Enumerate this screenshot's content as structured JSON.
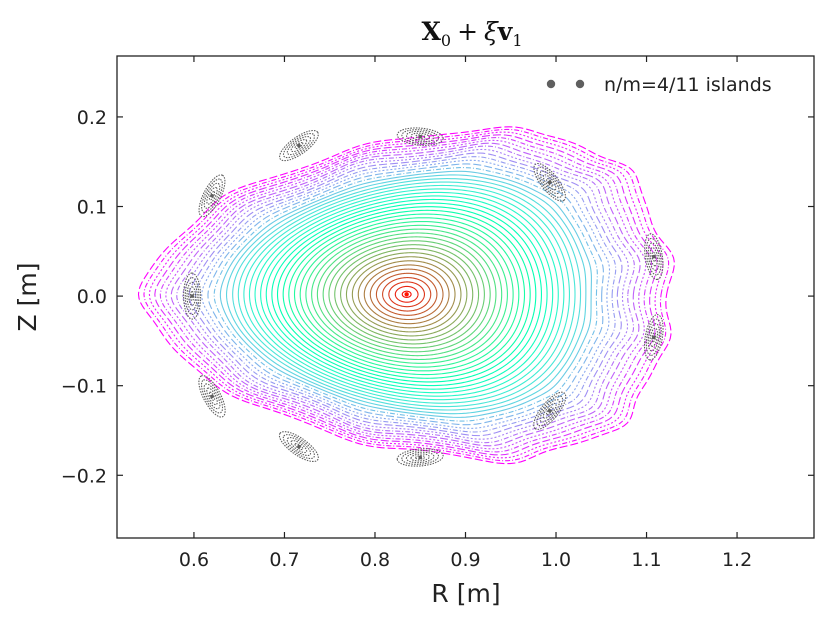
{
  "chart_data": {
    "type": "scatter",
    "title": "X₀ + ξ v₁",
    "title_parts": {
      "bold1": "X",
      "sub1": "0",
      "op": "+",
      "greek": "ξ",
      "bold2": "v",
      "sub2": "1"
    },
    "xlabel": "R [m]",
    "ylabel": "Z [m]",
    "xlim": [
      0.515,
      1.285
    ],
    "ylim": [
      -0.27,
      0.268
    ],
    "xticks": [
      0.6,
      0.7,
      0.8,
      0.9,
      1.0,
      1.1,
      1.2
    ],
    "xtick_labels": [
      "0.6",
      "0.7",
      "0.8",
      "0.9",
      "1.0",
      "1.1",
      "1.2"
    ],
    "yticks": [
      -0.2,
      -0.1,
      0.0,
      0.1,
      0.2
    ],
    "ytick_labels": [
      "−0.2",
      "−0.1",
      "0.0",
      "0.1",
      "0.2"
    ],
    "grid": false,
    "legend": {
      "position": "top-right",
      "label": "n/m=4/11 islands",
      "color": "#5f5f5f"
    },
    "magnetic_axis": {
      "R": 0.835,
      "Z": 0.002
    },
    "separatrix": {
      "island_count": 11,
      "a_R": 0.245,
      "a_Z": 0.172,
      "elongation_s": 0.15,
      "triangularity": -0.3
    },
    "flux_surfaces": {
      "count": 46,
      "max_rho": 1.18
    },
    "islands": [
      {
        "R": 0.598,
        "Z": 0.0
      },
      {
        "R": 0.62,
        "Z": 0.112
      },
      {
        "R": 0.716,
        "Z": 0.168
      },
      {
        "R": 0.85,
        "Z": 0.178
      },
      {
        "R": 0.993,
        "Z": 0.127
      },
      {
        "R": 1.108,
        "Z": 0.044
      },
      {
        "R": 1.108,
        "Z": -0.046
      },
      {
        "R": 0.993,
        "Z": -0.128
      },
      {
        "R": 0.85,
        "Z": -0.18
      },
      {
        "R": 0.716,
        "Z": -0.168
      },
      {
        "R": 0.62,
        "Z": -0.112
      }
    ],
    "colormap": "rainbow"
  }
}
